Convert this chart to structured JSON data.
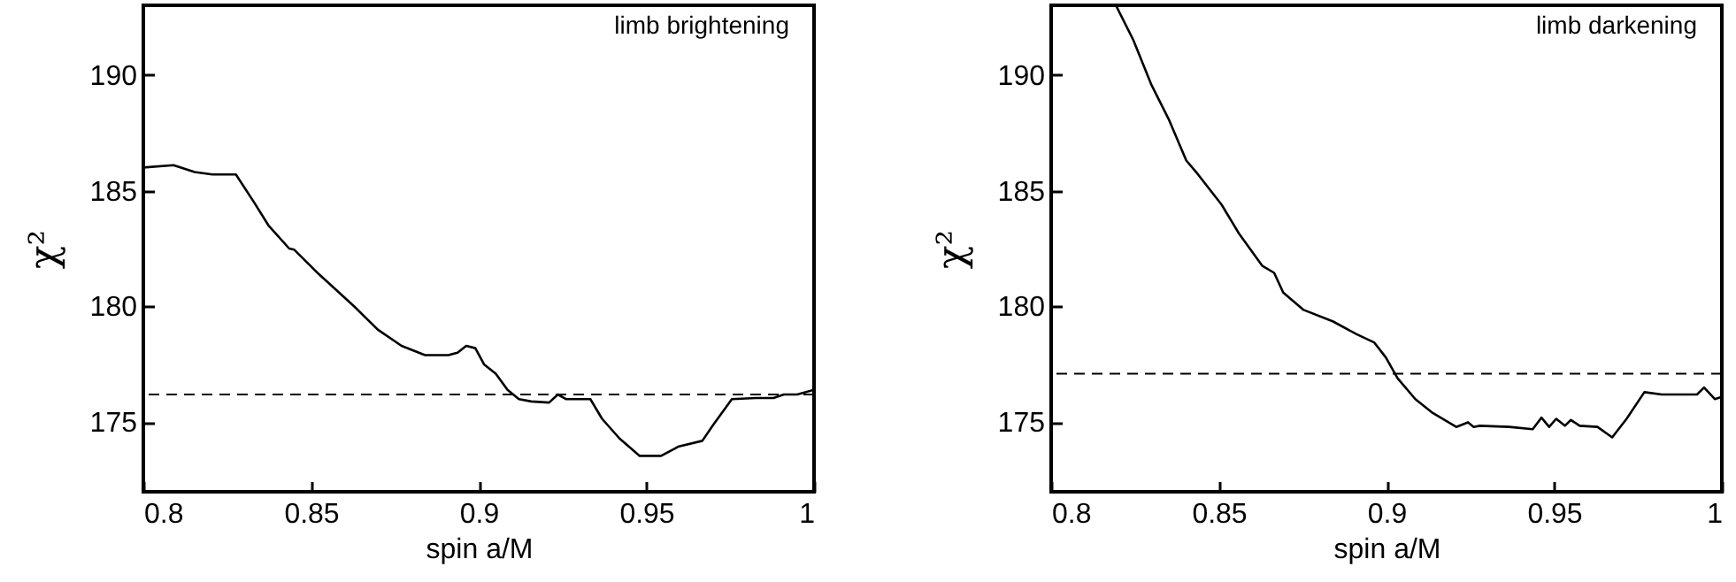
{
  "chart_data": [
    {
      "type": "line",
      "xlabel": "spin a/M",
      "ylabel": "χ²",
      "annotations": [
        "limb brightening"
      ],
      "xlim": [
        0.8,
        1
      ],
      "ylim": [
        172,
        193
      ],
      "xticks": [
        0.8,
        0.85,
        0.9,
        0.95,
        1
      ],
      "yticks": [
        175,
        180,
        185,
        190
      ],
      "grid": false,
      "legend": false,
      "x": [
        0.8,
        0.809,
        0.8153,
        0.8206,
        0.8276,
        0.833,
        0.8373,
        0.8435,
        0.845,
        0.8523,
        0.8629,
        0.8699,
        0.877,
        0.884,
        0.891,
        0.8937,
        0.8963,
        0.899,
        0.9016,
        0.9051,
        0.9086,
        0.912,
        0.9157,
        0.921,
        0.9236,
        0.926,
        0.9333,
        0.9368,
        0.942,
        0.948,
        0.9544,
        0.9597,
        0.9667,
        0.97,
        0.9755,
        0.9826,
        0.9879,
        0.991,
        0.995,
        1.0
      ],
      "series": [
        {
          "color": "#000000",
          "values": [
            186.0,
            186.1,
            185.8,
            185.7,
            185.7,
            184.5,
            183.5,
            182.5,
            182.45,
            181.4,
            180.0,
            179.0,
            178.3,
            177.9,
            177.9,
            178.0,
            178.3,
            178.2,
            177.5,
            177.1,
            176.4,
            176.0,
            175.9,
            175.85,
            176.2,
            176.0,
            176.0,
            175.15,
            174.3,
            173.55,
            173.55,
            173.96,
            174.2,
            174.9,
            176.0,
            176.05,
            176.05,
            176.2,
            176.2,
            176.4
          ]
        }
      ],
      "ref_lines": [
        {
          "axis": "y",
          "value": 176.2,
          "color": "#000000",
          "line_style": "dashed"
        }
      ]
    },
    {
      "type": "line",
      "xlabel": "spin a/M",
      "ylabel": "χ²",
      "annotations": [
        "limb darkening"
      ],
      "xlim": [
        0.8,
        1
      ],
      "ylim": [
        172,
        193
      ],
      "xticks": [
        0.8,
        0.85,
        0.9,
        0.95,
        1
      ],
      "yticks": [
        175,
        180,
        185,
        190
      ],
      "grid": false,
      "legend": false,
      "x": [
        0.8193,
        0.8245,
        0.8298,
        0.835,
        0.8403,
        0.8438,
        0.8508,
        0.856,
        0.863,
        0.8665,
        0.8692,
        0.8753,
        0.8841,
        0.8911,
        0.8963,
        0.8998,
        0.9033,
        0.9086,
        0.9138,
        0.9208,
        0.9243,
        0.926,
        0.9278,
        0.9366,
        0.9436,
        0.9462,
        0.9485,
        0.9506,
        0.9532,
        0.955,
        0.9576,
        0.9629,
        0.9673,
        0.9716,
        0.9769,
        0.9821,
        0.9874,
        0.9926,
        0.9947,
        0.9979,
        1.0
      ],
      "series": [
        {
          "color": "#000000",
          "values": [
            193.0,
            191.5,
            189.6,
            188.1,
            186.3,
            185.7,
            184.4,
            183.15,
            181.75,
            181.45,
            180.6,
            179.85,
            179.35,
            178.8,
            178.45,
            177.8,
            176.9,
            176.0,
            175.4,
            174.8,
            175.0,
            174.8,
            174.85,
            174.8,
            174.7,
            175.2,
            174.8,
            175.15,
            174.85,
            175.1,
            174.85,
            174.8,
            174.35,
            175.15,
            176.3,
            176.2,
            176.2,
            176.2,
            176.5,
            176.0,
            176.1
          ]
        }
      ],
      "ref_lines": [
        {
          "axis": "y",
          "value": 177.1,
          "color": "#000000",
          "line_style": "dashed"
        }
      ]
    }
  ]
}
